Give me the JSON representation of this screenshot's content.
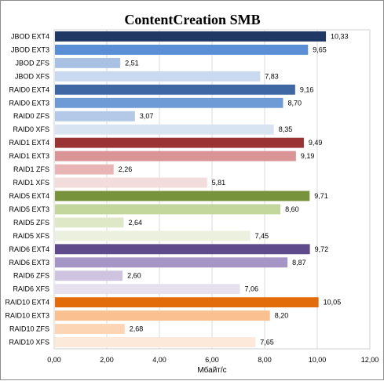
{
  "chart_data": {
    "type": "bar",
    "orientation": "horizontal",
    "title": "ContentCreation SMB",
    "xlabel": "Мбайт/с",
    "ylabel": "",
    "xlim": [
      0,
      12
    ],
    "x_ticks": [
      "0,00",
      "2,00",
      "4,00",
      "6,00",
      "8,00",
      "10,00",
      "12,00"
    ],
    "grid": "vertical",
    "legend": "none",
    "categories": [
      "JBOD EXT4",
      "JBOD EXT3",
      "JBOD ZFS",
      "JBOD XFS",
      "RAID0 EXT4",
      "RAID0 EXT3",
      "RAID0 ZFS",
      "RAID0 XFS",
      "RAID1 EXT4",
      "RAID1 EXT3",
      "RAID1 ZFS",
      "RAID1 XFS",
      "RAID5 EXT4",
      "RAID5 EXT3",
      "RAID5 ZFS",
      "RAID5 XFS",
      "RAID6 EXT4",
      "RAID6 EXT3",
      "RAID6 ZFS",
      "RAID6 XFS",
      "RAID10 EXT4",
      "RAID10 EXT3",
      "RAID10 ZFS",
      "RAID10 XFS"
    ],
    "values": [
      10.33,
      9.65,
      2.51,
      7.83,
      9.16,
      8.7,
      3.07,
      8.35,
      9.49,
      9.19,
      2.26,
      5.81,
      9.71,
      8.6,
      2.64,
      7.45,
      9.72,
      8.87,
      2.6,
      7.06,
      10.05,
      8.2,
      2.68,
      7.65
    ],
    "value_labels": [
      "10,33",
      "9,65",
      "2,51",
      "7,83",
      "9,16",
      "8,70",
      "3,07",
      "8,35",
      "9,49",
      "9,19",
      "2,26",
      "5,81",
      "9,71",
      "8,60",
      "2,64",
      "7,45",
      "9,72",
      "8,87",
      "2,60",
      "7,06",
      "10,05",
      "8,20",
      "2,68",
      "7,65"
    ],
    "colors": [
      "#1f3864",
      "#5a8fd6",
      "#a9c2e4",
      "#c9d9ef",
      "#3f67a3",
      "#6e9bd6",
      "#b4c9e7",
      "#d9e4f3",
      "#9a3333",
      "#d99595",
      "#e8b4b4",
      "#f2dcdc",
      "#77933c",
      "#c3d69b",
      "#dfe8c6",
      "#ebf1de",
      "#5f4b8b",
      "#a594c6",
      "#cfc4e0",
      "#e6e0ef",
      "#e36c0a",
      "#fac090",
      "#fcd5b4",
      "#fde9d9"
    ]
  }
}
